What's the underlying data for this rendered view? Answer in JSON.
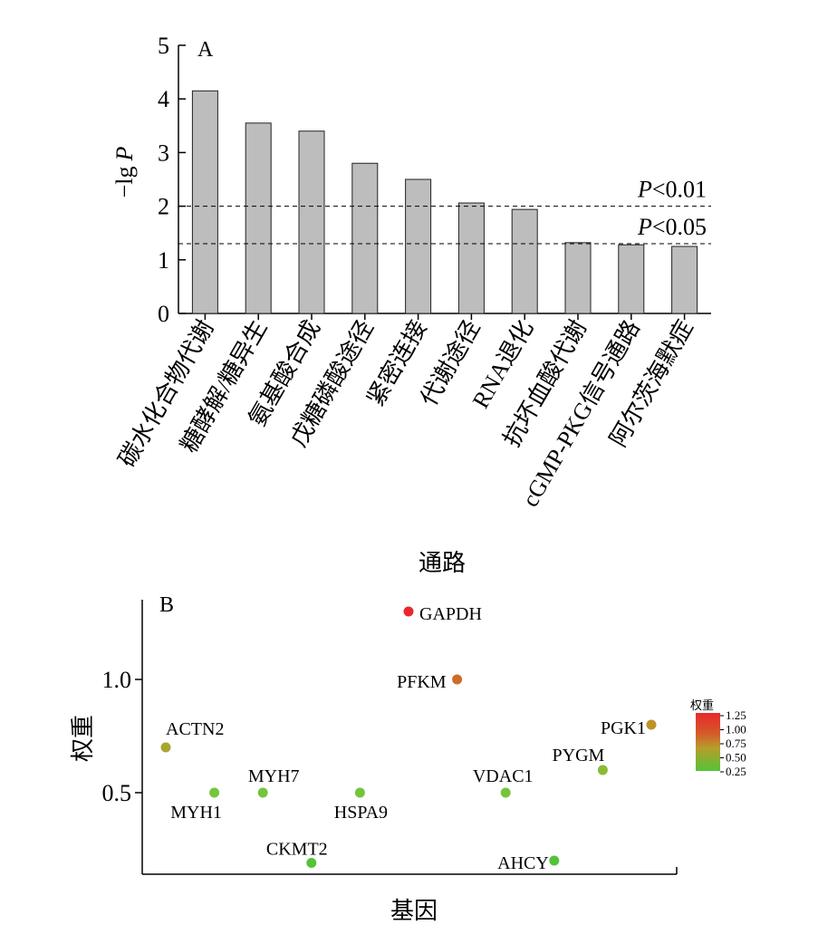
{
  "chart_data": [
    {
      "type": "bar",
      "panel_label": "A",
      "categories": [
        "碳水化合物代谢",
        "糖酵解/糖异生",
        "氨基酸合成",
        "戊糖磷酸途径",
        "紧密连接",
        "代谢途径",
        "RNA退化",
        "抗坏血酸代谢",
        "cGMP-PKG信号通路",
        "阿尔茨海默症"
      ],
      "values": [
        4.15,
        3.55,
        3.4,
        2.8,
        2.5,
        2.06,
        1.94,
        1.32,
        1.28,
        1.25
      ],
      "ylim": [
        0,
        5
      ],
      "yticks": [
        "0",
        "1",
        "2",
        "3",
        "4",
        "5"
      ],
      "ylabel": "−lg P",
      "ylabel_main": "−lg",
      "ylabel_var": "P",
      "xlabel": "通路",
      "bar_color": "#bdbdbd",
      "reference_lines": [
        {
          "value": 2.0,
          "label_var": "P",
          "label_rest": "<0.01"
        },
        {
          "value": 1.3,
          "label_var": "P",
          "label_rest": "<0.05"
        }
      ]
    },
    {
      "type": "scatter",
      "panel_label": "B",
      "xlabel": "基因",
      "ylabel": "权重",
      "yticks": [
        "0.5",
        "1.0"
      ],
      "points": [
        {
          "label": "ACTN2",
          "x": 1,
          "y": 0.7
        },
        {
          "label": "MYH1",
          "x": 2,
          "y": 0.5
        },
        {
          "label": "MYH7",
          "x": 3,
          "y": 0.5
        },
        {
          "label": "CKMT2",
          "x": 4,
          "y": 0.19
        },
        {
          "label": "HSPA9",
          "x": 5,
          "y": 0.5
        },
        {
          "label": "GAPDH",
          "x": 6,
          "y": 1.3
        },
        {
          "label": "PFKM",
          "x": 7,
          "y": 1.0
        },
        {
          "label": "VDAC1",
          "x": 8,
          "y": 0.5
        },
        {
          "label": "AHCY",
          "x": 9,
          "y": 0.2
        },
        {
          "label": "PYGM",
          "x": 10,
          "y": 0.6
        },
        {
          "label": "PGK1",
          "x": 11,
          "y": 0.8
        }
      ],
      "legend": {
        "title": "权重",
        "ticks": [
          "1.25",
          "1.00",
          "0.75",
          "0.50",
          "0.25"
        ],
        "colors": [
          "#e8282c",
          "#cf6b29",
          "#b89c2a",
          "#7cc43a",
          "#54c338"
        ]
      }
    }
  ]
}
